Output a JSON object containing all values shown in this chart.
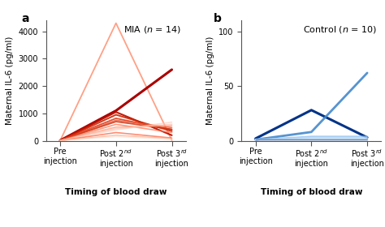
{
  "panel_a_label": "a",
  "panel_b_label": "b",
  "mia_annotation": "MIA ($\\ititalic$ = 14)",
  "control_annotation": "Control ($\\ititalic$ = 10)",
  "xlabel": "Timing of blood draw",
  "ylabel": "Maternal IL-6 (pg/ml)",
  "panel_a_ylim": [
    0,
    4400
  ],
  "panel_a_yticks": [
    0,
    1000,
    2000,
    3000,
    4000
  ],
  "panel_b_ylim": [
    0,
    110
  ],
  "panel_b_yticks": [
    0,
    50,
    100
  ],
  "mia_lines": [
    {
      "values": [
        5,
        4300,
        20
      ],
      "color": "#FF9070",
      "lw": 1.3,
      "alpha": 0.85
    },
    {
      "values": [
        10,
        1100,
        2600
      ],
      "color": "#AA0000",
      "lw": 2.2,
      "alpha": 1.0
    },
    {
      "values": [
        8,
        1050,
        200
      ],
      "color": "#BB1100",
      "lw": 1.5,
      "alpha": 0.95
    },
    {
      "values": [
        5,
        950,
        350
      ],
      "color": "#CC2200",
      "lw": 1.4,
      "alpha": 0.9
    },
    {
      "values": [
        8,
        820,
        400
      ],
      "color": "#DD3311",
      "lw": 1.3,
      "alpha": 0.85
    },
    {
      "values": [
        5,
        750,
        480
      ],
      "color": "#EE5533",
      "lw": 1.2,
      "alpha": 0.8
    },
    {
      "values": [
        10,
        700,
        420
      ],
      "color": "#CC3311",
      "lw": 1.3,
      "alpha": 0.85
    },
    {
      "values": [
        5,
        600,
        300
      ],
      "color": "#FF7755",
      "lw": 1.2,
      "alpha": 0.75
    },
    {
      "values": [
        5,
        500,
        550
      ],
      "color": "#FF9977",
      "lw": 1.2,
      "alpha": 0.7
    },
    {
      "values": [
        8,
        450,
        600
      ],
      "color": "#FFBBAA",
      "lw": 1.2,
      "alpha": 0.65
    },
    {
      "values": [
        10,
        400,
        680
      ],
      "color": "#FFCCBB",
      "lw": 1.2,
      "alpha": 0.65
    },
    {
      "values": [
        5,
        300,
        100
      ],
      "color": "#FF6644",
      "lw": 1.2,
      "alpha": 0.75
    },
    {
      "values": [
        5,
        200,
        80
      ],
      "color": "#FFAA88",
      "lw": 1.1,
      "alpha": 0.7
    },
    {
      "values": [
        5,
        150,
        50
      ],
      "color": "#FFDDCC",
      "lw": 1.1,
      "alpha": 0.6
    }
  ],
  "control_lines": [
    {
      "values": [
        2,
        28,
        3
      ],
      "color": "#003388",
      "lw": 2.2,
      "alpha": 1.0
    },
    {
      "values": [
        1,
        8,
        62
      ],
      "color": "#4488CC",
      "lw": 2.0,
      "alpha": 0.9
    },
    {
      "values": [
        1,
        4,
        4
      ],
      "color": "#88BBEE",
      "lw": 1.2,
      "alpha": 0.75
    },
    {
      "values": [
        1,
        3,
        3
      ],
      "color": "#AACCFF",
      "lw": 1.1,
      "alpha": 0.65
    },
    {
      "values": [
        1,
        3,
        3
      ],
      "color": "#BBDDFF",
      "lw": 1.1,
      "alpha": 0.6
    },
    {
      "values": [
        1,
        2,
        2
      ],
      "color": "#99BBDD",
      "lw": 1.1,
      "alpha": 0.6
    },
    {
      "values": [
        1,
        2,
        2
      ],
      "color": "#CCEEFF",
      "lw": 1.1,
      "alpha": 0.55
    },
    {
      "values": [
        1,
        1,
        1
      ],
      "color": "#7799CC",
      "lw": 1.0,
      "alpha": 0.55
    },
    {
      "values": [
        1,
        1,
        1
      ],
      "color": "#6688BB",
      "lw": 1.0,
      "alpha": 0.55
    },
    {
      "values": [
        1,
        1,
        1
      ],
      "color": "#5577AA",
      "lw": 1.0,
      "alpha": 0.55
    }
  ],
  "bg_color": "#FFFFFF",
  "axis_color": "#555555",
  "label_fontsize": 7.5,
  "tick_fontsize": 7.0,
  "annotation_fontsize": 8.0,
  "panel_label_fontsize": 10
}
